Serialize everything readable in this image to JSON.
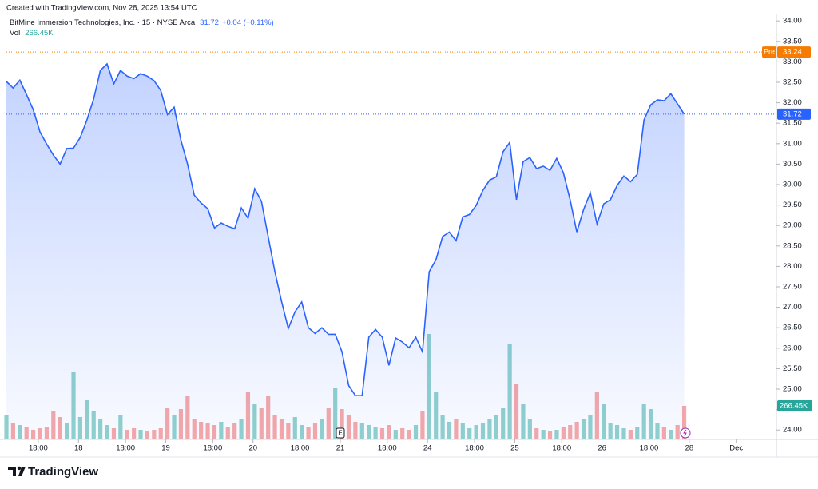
{
  "chart_data": {
    "type": "line",
    "watermark": "Created with TradingView.com, Nov 28, 2025 13:54 UTC",
    "brand": "TradingView",
    "xlim": [
      0,
      229
    ],
    "xticks": [
      {
        "value": 9.5,
        "label": "18:00"
      },
      {
        "value": 21.5,
        "label": "18"
      },
      {
        "value": 35.5,
        "label": "18:00"
      },
      {
        "value": 47.5,
        "label": "19"
      },
      {
        "value": 61.5,
        "label": "18:00"
      },
      {
        "value": 73.5,
        "label": "20"
      },
      {
        "value": 87.5,
        "label": "18:00"
      },
      {
        "value": 99.5,
        "label": "21"
      },
      {
        "value": 113.5,
        "label": "18:00"
      },
      {
        "value": 125.5,
        "label": "24"
      },
      {
        "value": 139.5,
        "label": "18:00"
      },
      {
        "value": 151.5,
        "label": "25"
      },
      {
        "value": 165.5,
        "label": "18:00"
      },
      {
        "value": 177.5,
        "label": "26"
      },
      {
        "value": 191.5,
        "label": "18:00"
      },
      {
        "value": 203.5,
        "label": "28"
      },
      {
        "value": 217.5,
        "label": "Dec"
      }
    ],
    "ylim": [
      23.77,
      34.16
    ],
    "yticks": [
      {
        "value": 24,
        "label": "24.00"
      },
      {
        "value": 24.5,
        "label": "24.50"
      },
      {
        "value": 25,
        "label": "25.00"
      },
      {
        "value": 25.5,
        "label": "25.50"
      },
      {
        "value": 26,
        "label": "26.00"
      },
      {
        "value": 26.5,
        "label": "26.50"
      },
      {
        "value": 27,
        "label": "27.00"
      },
      {
        "value": 27.5,
        "label": "27.50"
      },
      {
        "value": 28,
        "label": "28.00"
      },
      {
        "value": 28.5,
        "label": "28.50"
      },
      {
        "value": 29,
        "label": "29.00"
      },
      {
        "value": 29.5,
        "label": "29.50"
      },
      {
        "value": 30,
        "label": "30.00"
      },
      {
        "value": 30.5,
        "label": "30.50"
      },
      {
        "value": 31,
        "label": "31.00"
      },
      {
        "value": 31.5,
        "label": "31.50"
      },
      {
        "value": 32,
        "label": "32.00"
      },
      {
        "value": 32.5,
        "label": "32.50"
      },
      {
        "value": 33,
        "label": "33.00"
      },
      {
        "value": 33.5,
        "label": "33.50"
      },
      {
        "value": 34,
        "label": "34.00"
      }
    ],
    "grid": false,
    "x": [
      0,
      2,
      4,
      6,
      8,
      10,
      12,
      14,
      16,
      18,
      20,
      22,
      24,
      26,
      28,
      30,
      32,
      34,
      36,
      38,
      40,
      42,
      44,
      46,
      48,
      50,
      52,
      54,
      56,
      58,
      60,
      62,
      64,
      66,
      68,
      70,
      72,
      74,
      76,
      78,
      80,
      82,
      84,
      86,
      88,
      90,
      92,
      94,
      96,
      98,
      100,
      102,
      104,
      106,
      108,
      110,
      112,
      114,
      116,
      118,
      120,
      122,
      124,
      126,
      128,
      130,
      132,
      134,
      136,
      138,
      140,
      142,
      144,
      146,
      148,
      150,
      152,
      154,
      156,
      158,
      160,
      162,
      164,
      166,
      168,
      170,
      172,
      174,
      176,
      178,
      180,
      182,
      184,
      186,
      188,
      190,
      192,
      194,
      196,
      198,
      200,
      202
    ],
    "series": [
      {
        "name": "BitMine Immersion Technologies, Inc. · 15 · NYSE Arca",
        "color": "#2962ff",
        "change": "+0.04 (+0.11%)",
        "values": [
          32.52,
          32.36,
          32.55,
          32.2,
          31.83,
          31.29,
          30.99,
          30.72,
          30.5,
          30.88,
          30.89,
          31.15,
          31.58,
          32.09,
          32.79,
          32.95,
          32.46,
          32.79,
          32.65,
          32.59,
          32.71,
          32.65,
          32.54,
          32.3,
          31.71,
          31.89,
          31.09,
          30.5,
          29.74,
          29.55,
          29.41,
          28.94,
          29.06,
          28.98,
          28.92,
          29.43,
          29.18,
          29.9,
          29.59,
          28.73,
          27.87,
          27.14,
          26.48,
          26.89,
          27.13,
          26.5,
          26.36,
          26.5,
          26.34,
          26.34,
          25.91,
          25.09,
          24.84,
          24.84,
          26.27,
          26.46,
          26.27,
          25.58,
          26.25,
          26.15,
          26.01,
          26.27,
          25.91,
          27.87,
          28.16,
          28.73,
          28.84,
          28.63,
          29.21,
          29.27,
          29.49,
          29.86,
          30.11,
          30.19,
          30.8,
          31.03,
          29.63,
          30.56,
          30.66,
          30.39,
          30.45,
          30.35,
          30.64,
          30.29,
          29.63,
          28.84,
          29.39,
          29.8,
          29.04,
          29.53,
          29.63,
          29.98,
          30.21,
          30.07,
          30.25,
          31.58,
          31.95,
          32.07,
          32.05,
          32.22,
          31.97,
          31.72
        ]
      },
      {
        "name": "Vol",
        "type": "bar",
        "up_color": "#26a69a",
        "down_color": "#ef5350",
        "values": [
          190.2,
          126.8,
          114.1,
          95.1,
          76.1,
          88.8,
          101.4,
          221.9,
          177.5,
          126.8,
          532.6,
          177.5,
          317.0,
          221.9,
          158.5,
          114.1,
          88.8,
          190.2,
          76.1,
          88.8,
          76.1,
          63.4,
          76.1,
          88.8,
          253.6,
          190.2,
          240.9,
          348.7,
          158.5,
          139.5,
          126.8,
          114.1,
          139.5,
          95.1,
          126.8,
          158.5,
          380.4,
          285.3,
          253.6,
          348.7,
          190.2,
          158.5,
          126.8,
          177.5,
          114.1,
          95.1,
          126.8,
          158.5,
          253.6,
          412.1,
          240.9,
          190.2,
          139.5,
          126.8,
          114.1,
          95.1,
          88.8,
          114.1,
          76.1,
          88.8,
          76.1,
          114.1,
          221.9,
          836.9,
          380.4,
          190.2,
          139.5,
          158.5,
          126.8,
          88.8,
          114.1,
          126.8,
          158.5,
          190.2,
          253.6,
          760.8,
          443.8,
          285.3,
          158.5,
          88.8,
          76.1,
          63.4,
          76.1,
          95.1,
          114.1,
          139.5,
          158.5,
          190.2,
          380.4,
          285.3,
          126.8,
          114.1,
          88.8,
          76.1,
          95.1,
          285.3,
          240.9,
          126.8,
          95.1,
          76.1,
          114.1,
          266.45
        ],
        "value_labels": [
          null,
          null,
          null,
          null,
          null,
          null,
          null,
          null,
          null,
          null,
          null,
          null,
          null,
          null,
          null,
          null,
          null,
          null,
          null,
          null,
          null,
          null,
          null,
          null,
          null,
          null,
          null,
          null,
          null,
          null,
          null,
          null,
          null,
          null,
          null,
          null,
          null,
          null,
          null,
          null,
          null,
          null,
          null,
          null,
          null,
          null,
          null,
          null,
          null,
          null,
          null,
          null,
          null,
          null,
          null,
          null,
          null,
          null,
          null,
          null,
          null,
          null,
          null,
          null,
          null,
          null,
          null,
          null,
          null,
          null,
          null,
          null,
          null,
          null,
          null,
          null,
          null,
          null,
          null,
          null,
          null,
          null,
          null,
          null,
          null,
          null,
          null,
          null,
          null,
          null,
          null,
          null,
          null,
          null,
          null,
          null,
          null,
          null,
          null,
          null,
          null,
          "266.45K"
        ]
      }
    ],
    "pre_market": {
      "label": "Pre",
      "value": 33.24,
      "color": "#f57c00"
    },
    "events": [
      {
        "x": 99.5,
        "label": "E"
      }
    ]
  }
}
